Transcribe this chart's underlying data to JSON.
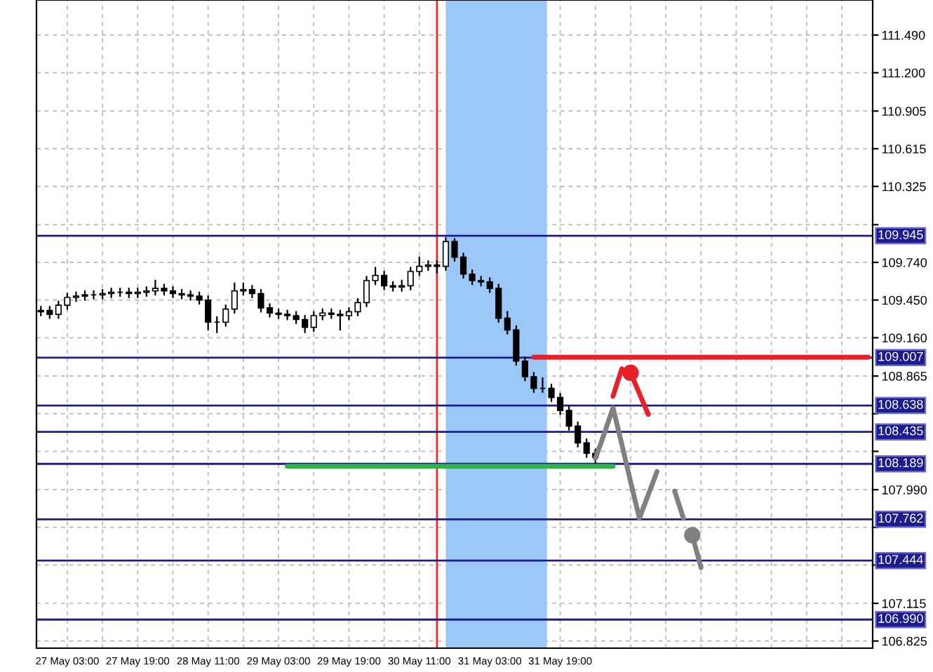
{
  "chart_data": {
    "type": "candlestick",
    "categories": [
      null,
      null,
      null,
      "27 May 03:00",
      null,
      null,
      null,
      null,
      null,
      null,
      null,
      "27 May 19:00",
      null,
      null,
      null,
      null,
      null,
      null,
      null,
      "28 May 11:00",
      null,
      null,
      null,
      null,
      null,
      null,
      null,
      "29 May 03:00",
      null,
      null,
      null,
      null,
      null,
      null,
      null,
      "29 May 19:00",
      null,
      null,
      null,
      null,
      null,
      null,
      null,
      "30 May 11:00",
      null,
      null,
      null,
      null,
      null,
      null,
      null,
      "31 May 03:00",
      null,
      null,
      null,
      null,
      null,
      null,
      null,
      "31 May 19:00",
      null,
      null,
      null,
      null,
      null,
      null,
      null,
      null,
      null,
      null,
      null,
      null,
      null,
      null,
      null,
      null,
      null,
      null,
      null,
      null,
      null,
      null,
      null,
      null,
      null,
      null,
      null,
      null,
      null,
      null,
      null,
      null,
      null,
      null,
      null
    ],
    "ohlc": [
      [
        109.36,
        109.4,
        109.33,
        109.37
      ],
      [
        109.37,
        109.4,
        109.31,
        109.34
      ],
      [
        109.34,
        109.44,
        109.31,
        109.41
      ],
      [
        109.41,
        109.5,
        109.38,
        109.47
      ],
      [
        109.47,
        109.51,
        109.44,
        109.48
      ],
      [
        109.48,
        109.52,
        109.45,
        109.49
      ],
      [
        109.49,
        109.52,
        109.46,
        109.49
      ],
      [
        109.49,
        109.53,
        109.46,
        109.5
      ],
      [
        109.5,
        109.54,
        109.47,
        109.51
      ],
      [
        109.51,
        109.54,
        109.48,
        109.51
      ],
      [
        109.51,
        109.54,
        109.47,
        109.5
      ],
      [
        109.5,
        109.54,
        109.47,
        109.51
      ],
      [
        109.51,
        109.55,
        109.48,
        109.52
      ],
      [
        109.52,
        109.6,
        109.49,
        109.54
      ],
      [
        109.54,
        109.57,
        109.49,
        109.52
      ],
      [
        109.52,
        109.55,
        109.47,
        109.5
      ],
      [
        109.5,
        109.53,
        109.46,
        109.49
      ],
      [
        109.49,
        109.52,
        109.45,
        109.48
      ],
      [
        109.48,
        109.51,
        109.42,
        109.45
      ],
      [
        109.45,
        109.48,
        109.22,
        109.28
      ],
      [
        109.28,
        109.32,
        109.2,
        109.28
      ],
      [
        109.28,
        109.41,
        109.25,
        109.38
      ],
      [
        109.38,
        109.58,
        109.35,
        109.52
      ],
      [
        109.52,
        109.58,
        109.49,
        109.53
      ],
      [
        109.53,
        109.56,
        109.47,
        109.5
      ],
      [
        109.5,
        109.53,
        109.36,
        109.39
      ],
      [
        109.39,
        109.42,
        109.32,
        109.35
      ],
      [
        109.35,
        109.38,
        109.31,
        109.34
      ],
      [
        109.34,
        109.37,
        109.3,
        109.33
      ],
      [
        109.33,
        109.36,
        109.27,
        109.3
      ],
      [
        109.3,
        109.33,
        109.2,
        109.24
      ],
      [
        109.24,
        109.36,
        109.21,
        109.33
      ],
      [
        109.33,
        109.38,
        109.3,
        109.35
      ],
      [
        109.35,
        109.38,
        109.31,
        109.34
      ],
      [
        109.34,
        109.37,
        109.22,
        109.33
      ],
      [
        109.33,
        109.39,
        109.3,
        109.36
      ],
      [
        109.36,
        109.46,
        109.33,
        109.43
      ],
      [
        109.43,
        109.63,
        109.4,
        109.6
      ],
      [
        109.6,
        109.7,
        109.57,
        109.64
      ],
      [
        109.64,
        109.67,
        109.53,
        109.56
      ],
      [
        109.56,
        109.59,
        109.52,
        109.55
      ],
      [
        109.55,
        109.6,
        109.52,
        109.56
      ],
      [
        109.56,
        109.7,
        109.53,
        109.67
      ],
      [
        109.67,
        109.78,
        109.64,
        109.71
      ],
      [
        109.71,
        109.75,
        109.68,
        109.72
      ],
      [
        109.72,
        109.75,
        109.66,
        109.71
      ],
      [
        109.71,
        109.93,
        109.68,
        109.9
      ],
      [
        109.9,
        109.92,
        109.75,
        109.78
      ],
      [
        109.78,
        109.81,
        109.62,
        109.65
      ],
      [
        109.65,
        109.68,
        109.57,
        109.6
      ],
      [
        109.6,
        109.63,
        109.56,
        109.59
      ],
      [
        109.59,
        109.62,
        109.51,
        109.54
      ],
      [
        109.54,
        109.57,
        109.28,
        109.31
      ],
      [
        109.31,
        109.36,
        109.19,
        109.22
      ],
      [
        109.22,
        109.25,
        108.95,
        108.98
      ],
      [
        108.98,
        109.01,
        108.83,
        108.86
      ],
      [
        108.86,
        108.89,
        108.74,
        108.77
      ],
      [
        108.77,
        108.85,
        108.74,
        108.77
      ],
      [
        108.77,
        108.8,
        108.67,
        108.7
      ],
      [
        108.7,
        108.73,
        108.57,
        108.6
      ],
      [
        108.6,
        108.63,
        108.45,
        108.48
      ],
      [
        108.48,
        108.51,
        108.32,
        108.35
      ],
      [
        108.35,
        108.38,
        108.24,
        108.27
      ],
      [
        108.27,
        108.3,
        108.19,
        108.24
      ],
      null,
      null,
      null,
      null,
      null,
      null,
      null,
      null,
      null,
      null,
      null,
      null,
      null,
      null,
      null,
      null,
      null,
      null,
      null,
      null,
      null,
      null,
      null,
      null,
      null,
      null,
      null,
      null,
      null,
      null,
      null
    ],
    "series": [
      {
        "type": "line",
        "color": "#808080",
        "values": [
          null,
          null,
          null,
          null,
          null,
          null,
          null,
          null,
          null,
          null,
          null,
          null,
          null,
          null,
          null,
          null,
          null,
          null,
          null,
          null,
          null,
          null,
          null,
          null,
          null,
          null,
          null,
          null,
          null,
          null,
          null,
          null,
          null,
          null,
          null,
          null,
          null,
          null,
          null,
          null,
          null,
          null,
          null,
          null,
          null,
          null,
          null,
          null,
          null,
          null,
          null,
          null,
          null,
          null,
          null,
          null,
          null,
          null,
          null,
          null,
          null,
          null,
          null,
          108.23,
          108.42,
          108.62,
          108.34,
          108.05,
          107.77,
          107.95,
          108.13,
          null,
          null,
          null,
          null,
          null,
          null,
          null,
          null,
          null,
          null,
          null,
          null,
          null,
          null,
          null,
          null,
          null,
          null,
          null,
          null,
          null,
          null,
          null,
          null
        ]
      },
      {
        "type": "line",
        "color": "#808080",
        "values": [
          null,
          null,
          null,
          null,
          null,
          null,
          null,
          null,
          null,
          null,
          null,
          null,
          null,
          null,
          null,
          null,
          null,
          null,
          null,
          null,
          null,
          null,
          null,
          null,
          null,
          null,
          null,
          null,
          null,
          null,
          null,
          null,
          null,
          null,
          null,
          null,
          null,
          null,
          null,
          null,
          null,
          null,
          null,
          null,
          null,
          null,
          null,
          null,
          null,
          null,
          null,
          null,
          null,
          null,
          null,
          null,
          null,
          null,
          null,
          null,
          null,
          null,
          null,
          null,
          null,
          null,
          null,
          null,
          null,
          null,
          null,
          null,
          107.98,
          107.77,
          null,
          null,
          null,
          null,
          null,
          null,
          null,
          null,
          null,
          null,
          null,
          null,
          null,
          null,
          null,
          null,
          null,
          null,
          null,
          null,
          null
        ]
      },
      {
        "type": "line",
        "color": "#808080",
        "values": [
          null,
          null,
          null,
          null,
          null,
          null,
          null,
          null,
          null,
          null,
          null,
          null,
          null,
          null,
          null,
          null,
          null,
          null,
          null,
          null,
          null,
          null,
          null,
          null,
          null,
          null,
          null,
          null,
          null,
          null,
          null,
          null,
          null,
          null,
          null,
          null,
          null,
          null,
          null,
          null,
          null,
          null,
          null,
          null,
          null,
          null,
          null,
          null,
          null,
          null,
          null,
          null,
          null,
          null,
          null,
          null,
          null,
          null,
          null,
          null,
          null,
          null,
          null,
          null,
          null,
          null,
          null,
          null,
          null,
          null,
          null,
          null,
          null,
          null,
          107.64,
          107.39,
          null,
          null,
          null,
          null,
          null,
          null,
          null,
          null,
          null,
          null,
          null,
          null,
          null,
          null,
          null,
          null,
          null,
          null,
          null
        ]
      },
      {
        "type": "scatter",
        "color": "#808080",
        "marker": "circle",
        "values": [
          null,
          null,
          null,
          null,
          null,
          null,
          null,
          null,
          null,
          null,
          null,
          null,
          null,
          null,
          null,
          null,
          null,
          null,
          null,
          null,
          null,
          null,
          null,
          null,
          null,
          null,
          null,
          null,
          null,
          null,
          null,
          null,
          null,
          null,
          null,
          null,
          null,
          null,
          null,
          null,
          null,
          null,
          null,
          null,
          null,
          null,
          null,
          null,
          null,
          null,
          null,
          null,
          null,
          null,
          null,
          null,
          null,
          null,
          null,
          null,
          null,
          null,
          null,
          null,
          null,
          null,
          null,
          null,
          null,
          null,
          null,
          null,
          null,
          null,
          107.64,
          null,
          null,
          null,
          null,
          null,
          null,
          null,
          null,
          null,
          null,
          null,
          null,
          null,
          null,
          null,
          null,
          null,
          null,
          null,
          null
        ]
      },
      {
        "type": "line",
        "color": "#e8202a",
        "values": [
          null,
          null,
          null,
          null,
          null,
          null,
          null,
          null,
          null,
          null,
          null,
          null,
          null,
          null,
          null,
          null,
          null,
          null,
          null,
          null,
          null,
          null,
          null,
          null,
          null,
          null,
          null,
          null,
          null,
          null,
          null,
          null,
          null,
          null,
          null,
          null,
          null,
          null,
          null,
          null,
          null,
          null,
          null,
          null,
          null,
          null,
          null,
          null,
          null,
          null,
          null,
          null,
          null,
          null,
          null,
          null,
          null,
          null,
          null,
          null,
          null,
          null,
          null,
          null,
          null,
          108.71,
          108.92,
          null,
          null,
          null,
          null,
          null,
          null,
          null,
          null,
          null,
          null,
          null,
          null,
          null,
          null,
          null,
          null,
          null,
          null,
          null,
          null,
          null,
          null,
          null,
          null,
          null,
          null,
          null,
          null
        ]
      },
      {
        "type": "line",
        "color": "#e8202a",
        "values": [
          null,
          null,
          null,
          null,
          null,
          null,
          null,
          null,
          null,
          null,
          null,
          null,
          null,
          null,
          null,
          null,
          null,
          null,
          null,
          null,
          null,
          null,
          null,
          null,
          null,
          null,
          null,
          null,
          null,
          null,
          null,
          null,
          null,
          null,
          null,
          null,
          null,
          null,
          null,
          null,
          null,
          null,
          null,
          null,
          null,
          null,
          null,
          null,
          null,
          null,
          null,
          null,
          null,
          null,
          null,
          null,
          null,
          null,
          null,
          null,
          null,
          null,
          null,
          null,
          null,
          null,
          null,
          108.89,
          108.73,
          108.57,
          null,
          null,
          null,
          null,
          null,
          null,
          null,
          null,
          null,
          null,
          null,
          null,
          null,
          null,
          null,
          null,
          null,
          null,
          null,
          null,
          null,
          null,
          null,
          null,
          null
        ]
      },
      {
        "type": "scatter",
        "color": "#e8202a",
        "marker": "circle",
        "values": [
          null,
          null,
          null,
          null,
          null,
          null,
          null,
          null,
          null,
          null,
          null,
          null,
          null,
          null,
          null,
          null,
          null,
          null,
          null,
          null,
          null,
          null,
          null,
          null,
          null,
          null,
          null,
          null,
          null,
          null,
          null,
          null,
          null,
          null,
          null,
          null,
          null,
          null,
          null,
          null,
          null,
          null,
          null,
          null,
          null,
          null,
          null,
          null,
          null,
          null,
          null,
          null,
          null,
          null,
          null,
          null,
          null,
          null,
          null,
          null,
          null,
          null,
          null,
          null,
          null,
          null,
          null,
          108.89,
          null,
          null,
          null,
          null,
          null,
          null,
          null,
          null,
          null,
          null,
          null,
          null,
          null,
          null,
          null,
          null,
          null,
          null,
          null,
          null,
          null,
          null,
          null,
          null,
          null,
          null,
          null
        ]
      },
      {
        "type": "line",
        "color": "#e8202a",
        "values": [
          null,
          null,
          null,
          null,
          null,
          null,
          null,
          null,
          null,
          null,
          null,
          null,
          null,
          null,
          null,
          null,
          null,
          null,
          null,
          null,
          null,
          null,
          null,
          null,
          null,
          null,
          null,
          null,
          null,
          null,
          null,
          null,
          null,
          null,
          null,
          null,
          null,
          null,
          null,
          null,
          null,
          null,
          null,
          null,
          null,
          null,
          null,
          null,
          null,
          null,
          null,
          null,
          null,
          null,
          null,
          null,
          109.01,
          109.01,
          109.01,
          109.01,
          109.01,
          109.01,
          109.01,
          109.01,
          109.01,
          109.01,
          109.01,
          109.01,
          109.01,
          109.01,
          109.01,
          109.01,
          109.01,
          109.01,
          109.01,
          109.01,
          109.01,
          109.01,
          109.01,
          109.01,
          109.01,
          109.01,
          109.01,
          109.01,
          109.01,
          109.01,
          109.01,
          109.01,
          109.01,
          109.01,
          109.01,
          109.01,
          109.01,
          109.01,
          109.01
        ]
      },
      {
        "type": "line",
        "color": "#2db34a",
        "values": [
          null,
          null,
          null,
          null,
          null,
          null,
          null,
          null,
          null,
          null,
          null,
          null,
          null,
          null,
          null,
          null,
          null,
          null,
          null,
          null,
          null,
          null,
          null,
          null,
          null,
          null,
          null,
          null,
          108.17,
          108.17,
          108.17,
          108.17,
          108.17,
          108.17,
          108.17,
          108.17,
          108.17,
          108.17,
          108.17,
          108.17,
          108.17,
          108.17,
          108.17,
          108.17,
          108.17,
          108.17,
          108.17,
          108.17,
          108.17,
          108.17,
          108.17,
          108.17,
          108.17,
          108.17,
          108.17,
          108.17,
          108.17,
          108.17,
          108.17,
          108.17,
          108.17,
          108.17,
          108.17,
          108.17,
          108.17,
          108.17,
          null,
          null,
          null,
          null,
          null,
          null,
          null,
          null,
          null,
          null,
          null,
          null,
          null,
          null,
          null,
          null,
          null,
          null,
          null,
          null,
          null,
          null,
          null,
          null,
          null,
          null,
          null,
          null,
          null
        ]
      }
    ],
    "ref_lines": [
      {
        "axis": "y",
        "value": 109.945,
        "label": "109.945",
        "color": "#1c1c8c"
      },
      {
        "axis": "y",
        "value": 109.007,
        "label": "109.007",
        "color": "#1c1c8c"
      },
      {
        "axis": "y",
        "value": 108.638,
        "label": "108.638",
        "color": "#1c1c8c"
      },
      {
        "axis": "y",
        "value": 108.435,
        "label": "108.435",
        "color": "#1c1c8c"
      },
      {
        "axis": "y",
        "value": 108.189,
        "label": "108.189",
        "color": "#1c1c8c"
      },
      {
        "axis": "y",
        "value": 107.762,
        "label": "107.762",
        "color": "#1c1c8c"
      },
      {
        "axis": "y",
        "value": 107.444,
        "label": "107.444",
        "color": "#1c1c8c"
      },
      {
        "axis": "y",
        "value": 106.99,
        "label": "106.990",
        "color": "#1c1c8c"
      }
    ],
    "ylim": [
      106.77,
      111.76
    ],
    "yticks": [
      {
        "value": 111.49,
        "label": "111.490"
      },
      {
        "value": 111.2,
        "label": "111.200"
      },
      {
        "value": 110.905,
        "label": "110.905"
      },
      {
        "value": 110.615,
        "label": "110.615"
      },
      {
        "value": 110.325,
        "label": "110.325"
      },
      {
        "value": 110.03,
        "label": null
      },
      {
        "value": 109.74,
        "label": "109.740"
      },
      {
        "value": 109.45,
        "label": "109.450"
      },
      {
        "value": 109.16,
        "label": "109.160"
      },
      {
        "value": 108.865,
        "label": "108.865"
      },
      {
        "value": 108.575,
        "label": null
      },
      {
        "value": 108.285,
        "label": null
      },
      {
        "value": 107.99,
        "label": "107.990"
      },
      {
        "value": 107.7,
        "label": null
      },
      {
        "value": 107.41,
        "label": null
      },
      {
        "value": 107.115,
        "label": "107.115"
      },
      {
        "value": 106.825,
        "label": "106.825"
      }
    ],
    "grid": true,
    "legend": false
  }
}
